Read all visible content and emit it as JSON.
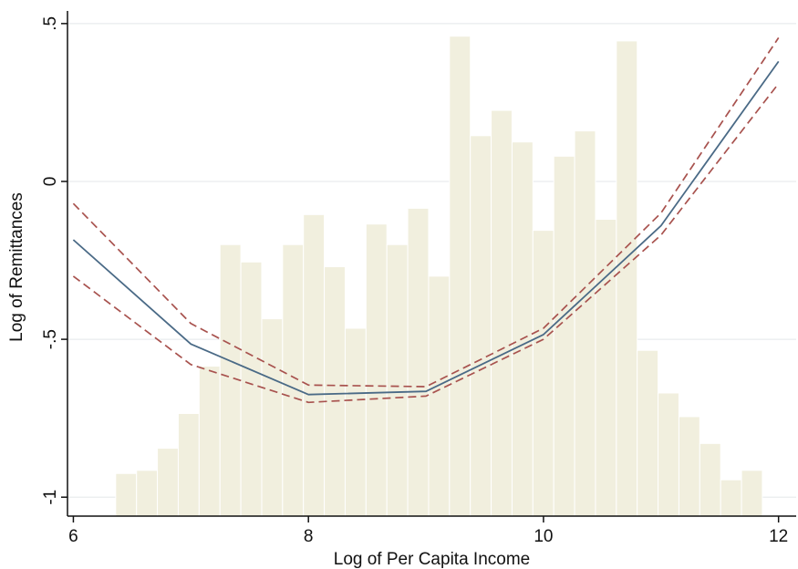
{
  "chart_data": {
    "type": "line",
    "xlabel": "Log of Per Capita Income",
    "ylabel": "Log of Remittances",
    "xlim": [
      5.95,
      12.15
    ],
    "ylim": [
      -1.06,
      0.54
    ],
    "x_ticks": [
      {
        "value": 6,
        "label": "6"
      },
      {
        "value": 8,
        "label": "8"
      },
      {
        "value": 10,
        "label": "10"
      },
      {
        "value": 12,
        "label": "12"
      }
    ],
    "y_ticks": [
      {
        "value": -1,
        "label": "-1"
      },
      {
        "value": -0.5,
        "label": "-.5"
      },
      {
        "value": 0,
        "label": "0"
      },
      {
        "value": 0.5,
        "label": ".5"
      }
    ],
    "grid": true,
    "histogram": {
      "bin_start": 6.36,
      "bin_width": 0.1775,
      "baseline": -1.06,
      "tops": [
        -0.925,
        -0.915,
        -0.845,
        -0.735,
        -0.585,
        -0.2,
        -0.255,
        -0.435,
        -0.2,
        -0.105,
        -0.27,
        -0.465,
        -0.135,
        -0.2,
        -0.085,
        -0.3,
        0.46,
        0.145,
        0.225,
        0.125,
        -0.155,
        0.08,
        0.16,
        -0.12,
        0.445,
        -0.535,
        -0.67,
        -0.745,
        -0.83,
        -0.945,
        -0.915
      ]
    },
    "series": [
      {
        "style": "fit",
        "x": [
          6,
          7,
          8,
          9,
          10,
          11,
          12
        ],
        "y": [
          -0.185,
          -0.515,
          -0.675,
          -0.665,
          -0.485,
          -0.14,
          0.38
        ]
      },
      {
        "style": "ci-upper",
        "x": [
          6,
          7,
          8,
          9,
          10,
          11,
          12
        ],
        "y": [
          -0.07,
          -0.45,
          -0.645,
          -0.65,
          -0.465,
          -0.1,
          0.455
        ]
      },
      {
        "style": "ci-lower",
        "x": [
          6,
          7,
          8,
          9,
          10,
          11,
          12
        ],
        "y": [
          -0.3,
          -0.58,
          -0.7,
          -0.68,
          -0.5,
          -0.17,
          0.31
        ]
      }
    ],
    "colors": {
      "histogram": "#f1efde",
      "histogram_edge": "#ffffff",
      "grid": "#e9ecee",
      "fit": "#4a6a86",
      "ci": "#a8524e",
      "axis": "#111111"
    }
  }
}
